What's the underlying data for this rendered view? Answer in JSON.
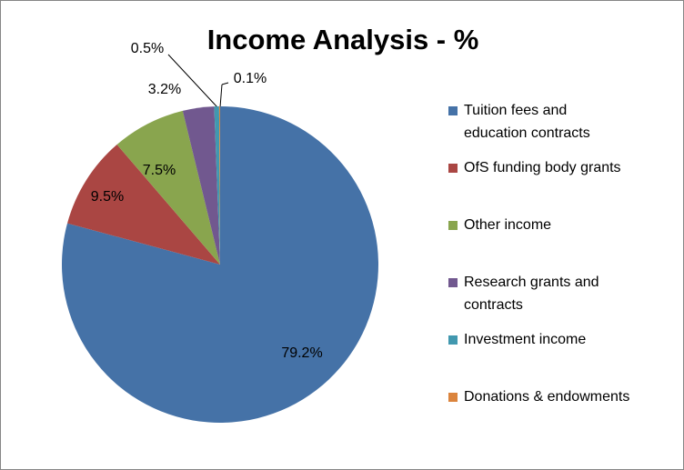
{
  "chart_data": {
    "type": "pie",
    "title": "Income Analysis - %",
    "categories": [
      "Tuition fees and education contracts",
      "OfS funding body grants",
      "Other income",
      "Research grants and contracts",
      "Investment income",
      "Donations & endowments"
    ],
    "values": [
      79.2,
      9.5,
      7.5,
      3.2,
      0.5,
      0.1
    ],
    "value_labels": [
      "79.2%",
      "9.5%",
      "7.5%",
      "3.2%",
      "0.5%",
      "0.1%"
    ],
    "colors": [
      "#4572a7",
      "#aa4643",
      "#89a54e",
      "#71588f",
      "#4198af",
      "#db843d"
    ],
    "legend": "right"
  }
}
